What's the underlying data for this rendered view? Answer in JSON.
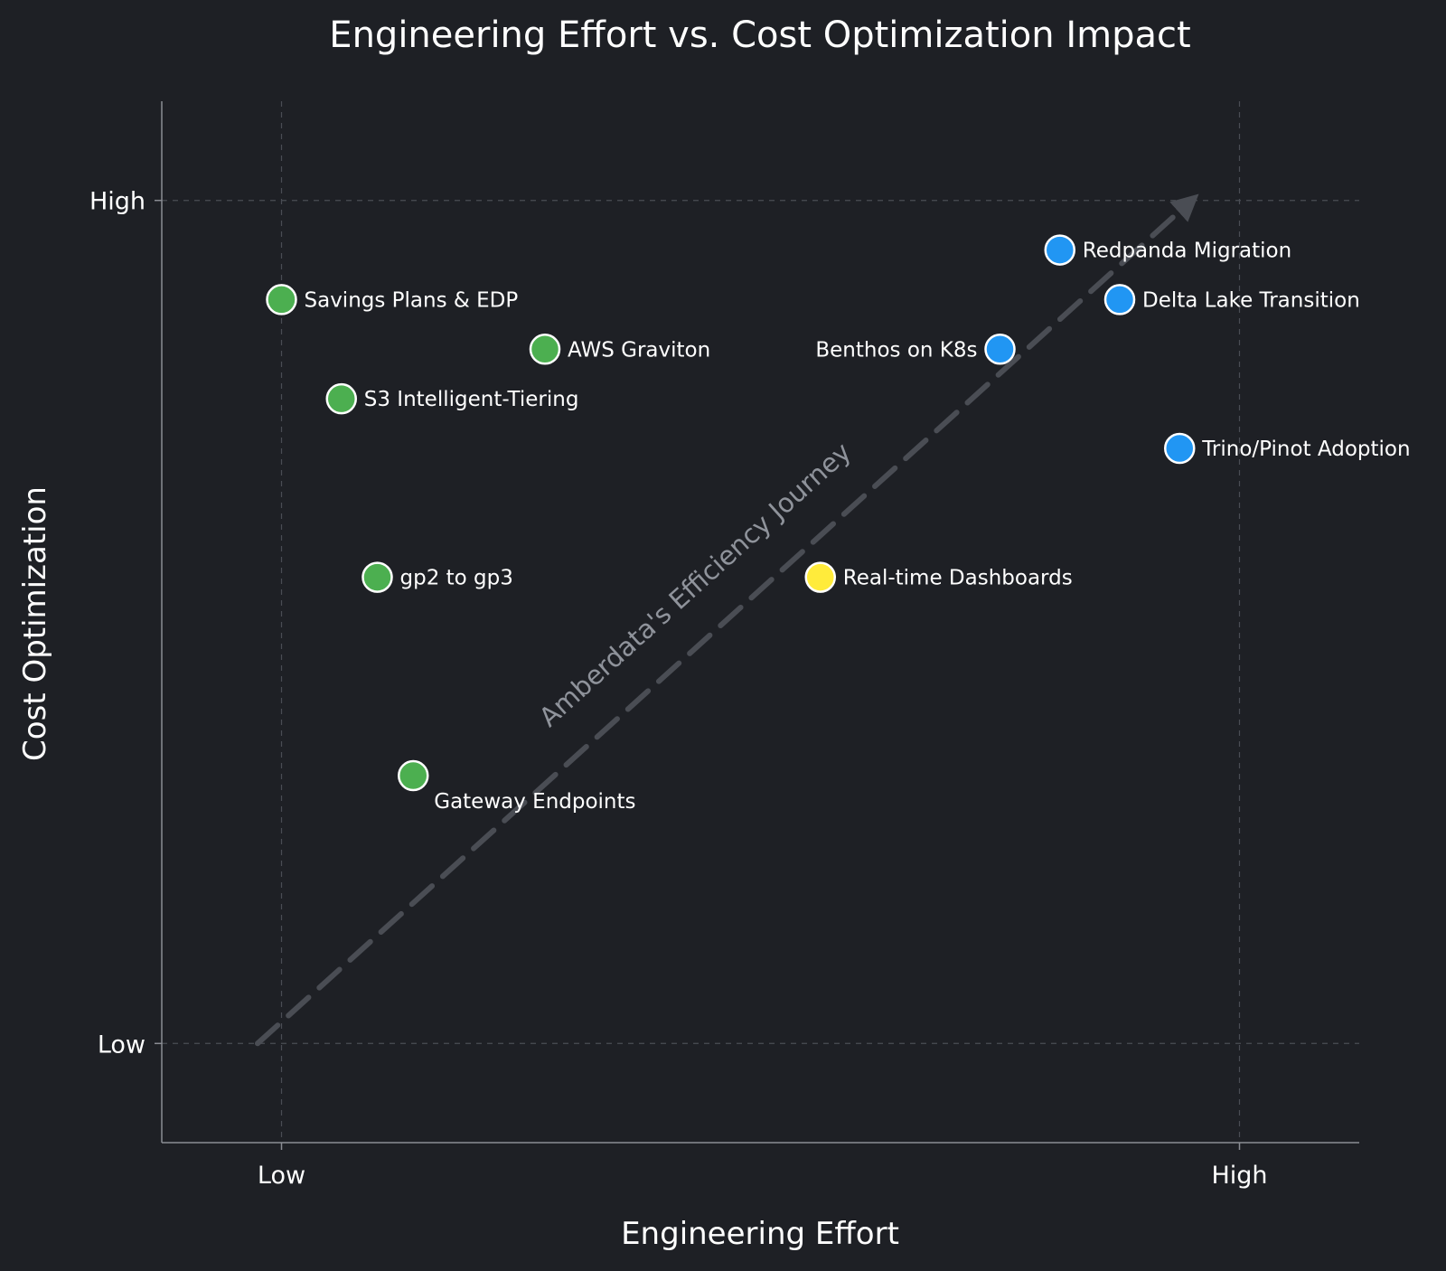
{
  "chart_data": {
    "type": "scatter",
    "title": "Engineering Effort vs. Cost Optimization Impact",
    "xlabel": "Engineering Effort",
    "ylabel": "Cost Optimization",
    "xlim": [
      -1.25,
      11.25
    ],
    "ylim": [
      -1,
      9.5
    ],
    "xticks": [
      {
        "value": 0,
        "label": "Low"
      },
      {
        "value": 10,
        "label": "High"
      }
    ],
    "yticks": [
      {
        "value": 0,
        "label": "Low"
      },
      {
        "value": 8.5,
        "label": "High"
      }
    ],
    "grid": true,
    "colors": {
      "green": "#4caf50",
      "blue": "#2196f3",
      "yellow": "#ffeb3b"
    },
    "points": [
      {
        "label": "Savings Plans & EDP",
        "x": 0.0,
        "y": 7.5,
        "color": "#4caf50",
        "anchor": "right"
      },
      {
        "label": "AWS Graviton",
        "x": 2.75,
        "y": 7.0,
        "color": "#4caf50",
        "anchor": "right"
      },
      {
        "label": "S3 Intelligent-Tiering",
        "x": 0.625,
        "y": 6.5,
        "color": "#4caf50",
        "anchor": "right"
      },
      {
        "label": "gp2 to gp3",
        "x": 1.0,
        "y": 4.7,
        "color": "#4caf50",
        "anchor": "right"
      },
      {
        "label": "Gateway Endpoints",
        "x": 1.375,
        "y": 2.7,
        "color": "#4caf50",
        "anchor": "below-right"
      },
      {
        "label": "Real-time Dashboards",
        "x": 5.625,
        "y": 4.7,
        "color": "#ffeb3b",
        "anchor": "right"
      },
      {
        "label": "Benthos on K8s",
        "x": 7.5,
        "y": 7.0,
        "color": "#2196f3",
        "anchor": "left"
      },
      {
        "label": "Redpanda Migration",
        "x": 8.125,
        "y": 8.0,
        "color": "#2196f3",
        "anchor": "right"
      },
      {
        "label": "Delta Lake Transition",
        "x": 8.75,
        "y": 7.5,
        "color": "#2196f3",
        "anchor": "right"
      },
      {
        "label": "Trino/Pinot Adoption",
        "x": 9.375,
        "y": 6.0,
        "color": "#2196f3",
        "anchor": "right"
      }
    ],
    "trend_arrow": {
      "label": "Amberdata's Efficiency Journey",
      "start": [
        -0.25,
        0.0
      ],
      "end": [
        9.5,
        8.5
      ],
      "color": "#4a4d54"
    }
  }
}
